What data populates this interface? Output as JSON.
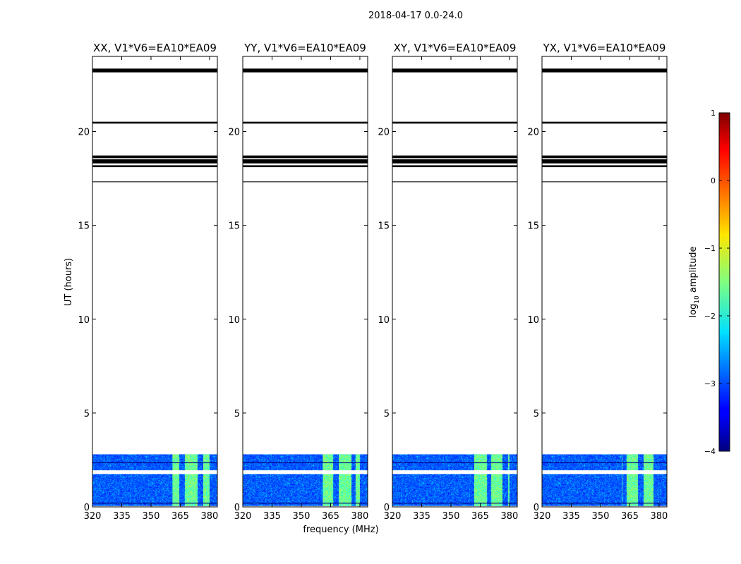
{
  "suptitle": "2018-04-17 0.0-24.0",
  "chart_data": {
    "type": "heatmap",
    "ylabel": "UT (hours)",
    "xlabel": "frequency (MHz)",
    "xlim": [
      320,
      384
    ],
    "ylim": [
      0,
      24
    ],
    "xticks": [
      320,
      335,
      350,
      365,
      380
    ],
    "yticks": [
      0,
      5,
      10,
      15,
      20
    ],
    "data_extent_hours": [
      0.05,
      2.8
    ],
    "flag_band_hours": [
      1.75,
      1.95
    ],
    "thin_lines_hours": [
      2.35,
      0.2
    ],
    "bright_band_mhz": [
      361,
      380
    ],
    "black_bands_hours": [
      [
        23.15,
        23.35
      ],
      [
        20.42,
        20.52
      ],
      [
        18.58,
        18.72
      ],
      [
        18.3,
        18.52
      ],
      [
        18.1,
        18.2
      ],
      [
        17.3,
        17.34
      ]
    ],
    "panels": [
      {
        "title": "XX, V1*V6=EA10*EA09",
        "pol": "XX"
      },
      {
        "title": "YY, V1*V6=EA10*EA09",
        "pol": "YY"
      },
      {
        "title": "XY, V1*V6=EA10*EA09",
        "pol": "XY"
      },
      {
        "title": "YX, V1*V6=EA10*EA09",
        "pol": "YX"
      }
    ],
    "colorbar": {
      "label": "log10 amplitude",
      "label_base": "log",
      "label_sub": "10",
      "label_rest": " amplitude",
      "min": -4,
      "max": 1,
      "ticks": [
        "1",
        "0",
        "−1",
        "−2",
        "−3",
        "−4"
      ],
      "tick_values": [
        1,
        0,
        -1,
        -2,
        -3,
        -4
      ],
      "colormap": "jet"
    }
  }
}
